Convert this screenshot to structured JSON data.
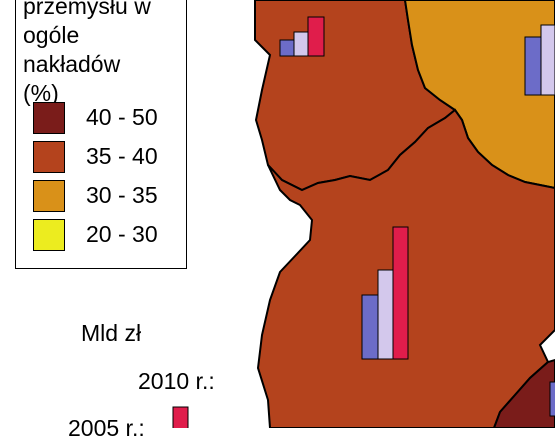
{
  "map": {
    "colors": {
      "background": "#ffffff",
      "class_40_50": "#7a1c1a",
      "class_35_40": "#b4431d",
      "class_30_35": "#d99119",
      "class_20_30": "#ecec1f",
      "bar_2005": "#6c6cc8",
      "bar_2008": "#d3c8ec",
      "bar_2010": "#e01d4b",
      "border": "#000000"
    },
    "regions": [
      {
        "id": "north-west-region",
        "class": "35 - 40"
      },
      {
        "id": "north-east-region",
        "class": "30 - 35"
      },
      {
        "id": "central-region",
        "class": "35 - 40"
      },
      {
        "id": "south-east-region",
        "class": "40 - 50"
      }
    ]
  },
  "legend": {
    "title_lines": [
      "przemysłu w",
      "ogóle",
      "nakładów",
      "(%)"
    ],
    "items": [
      {
        "label": "40 - 50",
        "color": "#7a1c1a"
      },
      {
        "label": "35 - 40",
        "color": "#b4431d"
      },
      {
        "label": "30 - 35",
        "color": "#d99119"
      },
      {
        "label": "20 - 30",
        "color": "#ecec1f"
      }
    ]
  },
  "bar_legend": {
    "unit": "Mld zł",
    "year_2010": "2010 r.:",
    "year_2005": "2005 r.:"
  }
}
